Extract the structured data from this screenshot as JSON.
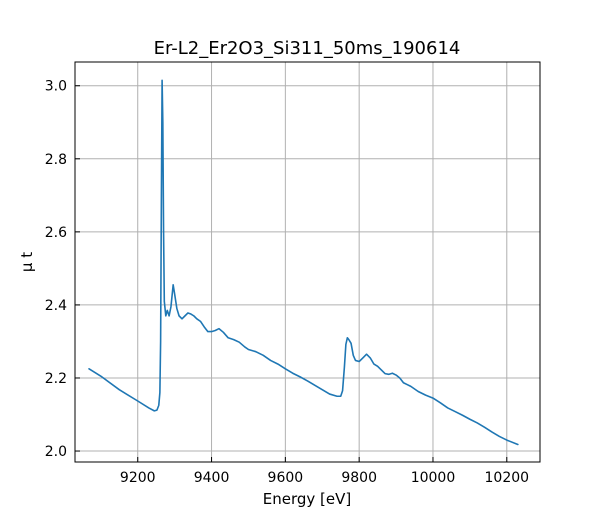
{
  "chart_data": {
    "type": "line",
    "title": "Er-L2_Er2O3_Si311_50ms_190614",
    "xlabel": "Energy [eV]",
    "ylabel": "μ t",
    "xlim": [
      9030,
      10290
    ],
    "ylim": [
      1.97,
      3.065
    ],
    "xticks": [
      9200,
      9400,
      9600,
      9800,
      10000,
      10200
    ],
    "yticks": [
      2.0,
      2.2,
      2.4,
      2.6,
      2.8,
      3.0
    ],
    "xtick_labels": [
      "9200",
      "9400",
      "9600",
      "9800",
      "10000",
      "10200"
    ],
    "ytick_labels": [
      "2.0",
      "2.2",
      "2.4",
      "2.6",
      "2.8",
      "3.0"
    ],
    "grid": true,
    "legend": "none",
    "series": [
      {
        "color": "#1f77b4",
        "x": [
          9068,
          9100,
          9150,
          9200,
          9230,
          9245,
          9252,
          9257,
          9260,
          9262,
          9264,
          9266,
          9268,
          9270,
          9272,
          9276,
          9280,
          9285,
          9290,
          9296,
          9300,
          9306,
          9312,
          9320,
          9328,
          9336,
          9344,
          9352,
          9360,
          9370,
          9380,
          9390,
          9400,
          9410,
          9420,
          9432,
          9445,
          9460,
          9475,
          9490,
          9500,
          9520,
          9540,
          9560,
          9580,
          9600,
          9620,
          9640,
          9660,
          9680,
          9700,
          9720,
          9740,
          9750,
          9755,
          9760,
          9764,
          9768,
          9772,
          9778,
          9784,
          9790,
          9800,
          9810,
          9820,
          9830,
          9840,
          9850,
          9860,
          9870,
          9880,
          9890,
          9900,
          9910,
          9920,
          9930,
          9940,
          9960,
          9980,
          10000,
          10020,
          10040,
          10060,
          10080,
          10100,
          10120,
          10140,
          10160,
          10180,
          10200,
          10230
        ],
        "y": [
          2.225,
          2.205,
          2.168,
          2.137,
          2.118,
          2.11,
          2.112,
          2.125,
          2.16,
          2.3,
          2.68,
          3.015,
          2.9,
          2.6,
          2.41,
          2.37,
          2.385,
          2.37,
          2.395,
          2.455,
          2.43,
          2.39,
          2.37,
          2.362,
          2.37,
          2.378,
          2.375,
          2.37,
          2.362,
          2.355,
          2.34,
          2.327,
          2.327,
          2.33,
          2.335,
          2.325,
          2.31,
          2.305,
          2.298,
          2.285,
          2.278,
          2.272,
          2.262,
          2.248,
          2.238,
          2.225,
          2.213,
          2.203,
          2.192,
          2.18,
          2.168,
          2.156,
          2.15,
          2.15,
          2.165,
          2.23,
          2.292,
          2.31,
          2.305,
          2.295,
          2.262,
          2.248,
          2.245,
          2.255,
          2.265,
          2.255,
          2.238,
          2.232,
          2.222,
          2.212,
          2.21,
          2.213,
          2.208,
          2.2,
          2.187,
          2.182,
          2.177,
          2.163,
          2.153,
          2.145,
          2.132,
          2.118,
          2.108,
          2.098,
          2.087,
          2.077,
          2.065,
          2.052,
          2.04,
          2.03,
          2.018
        ]
      }
    ]
  }
}
